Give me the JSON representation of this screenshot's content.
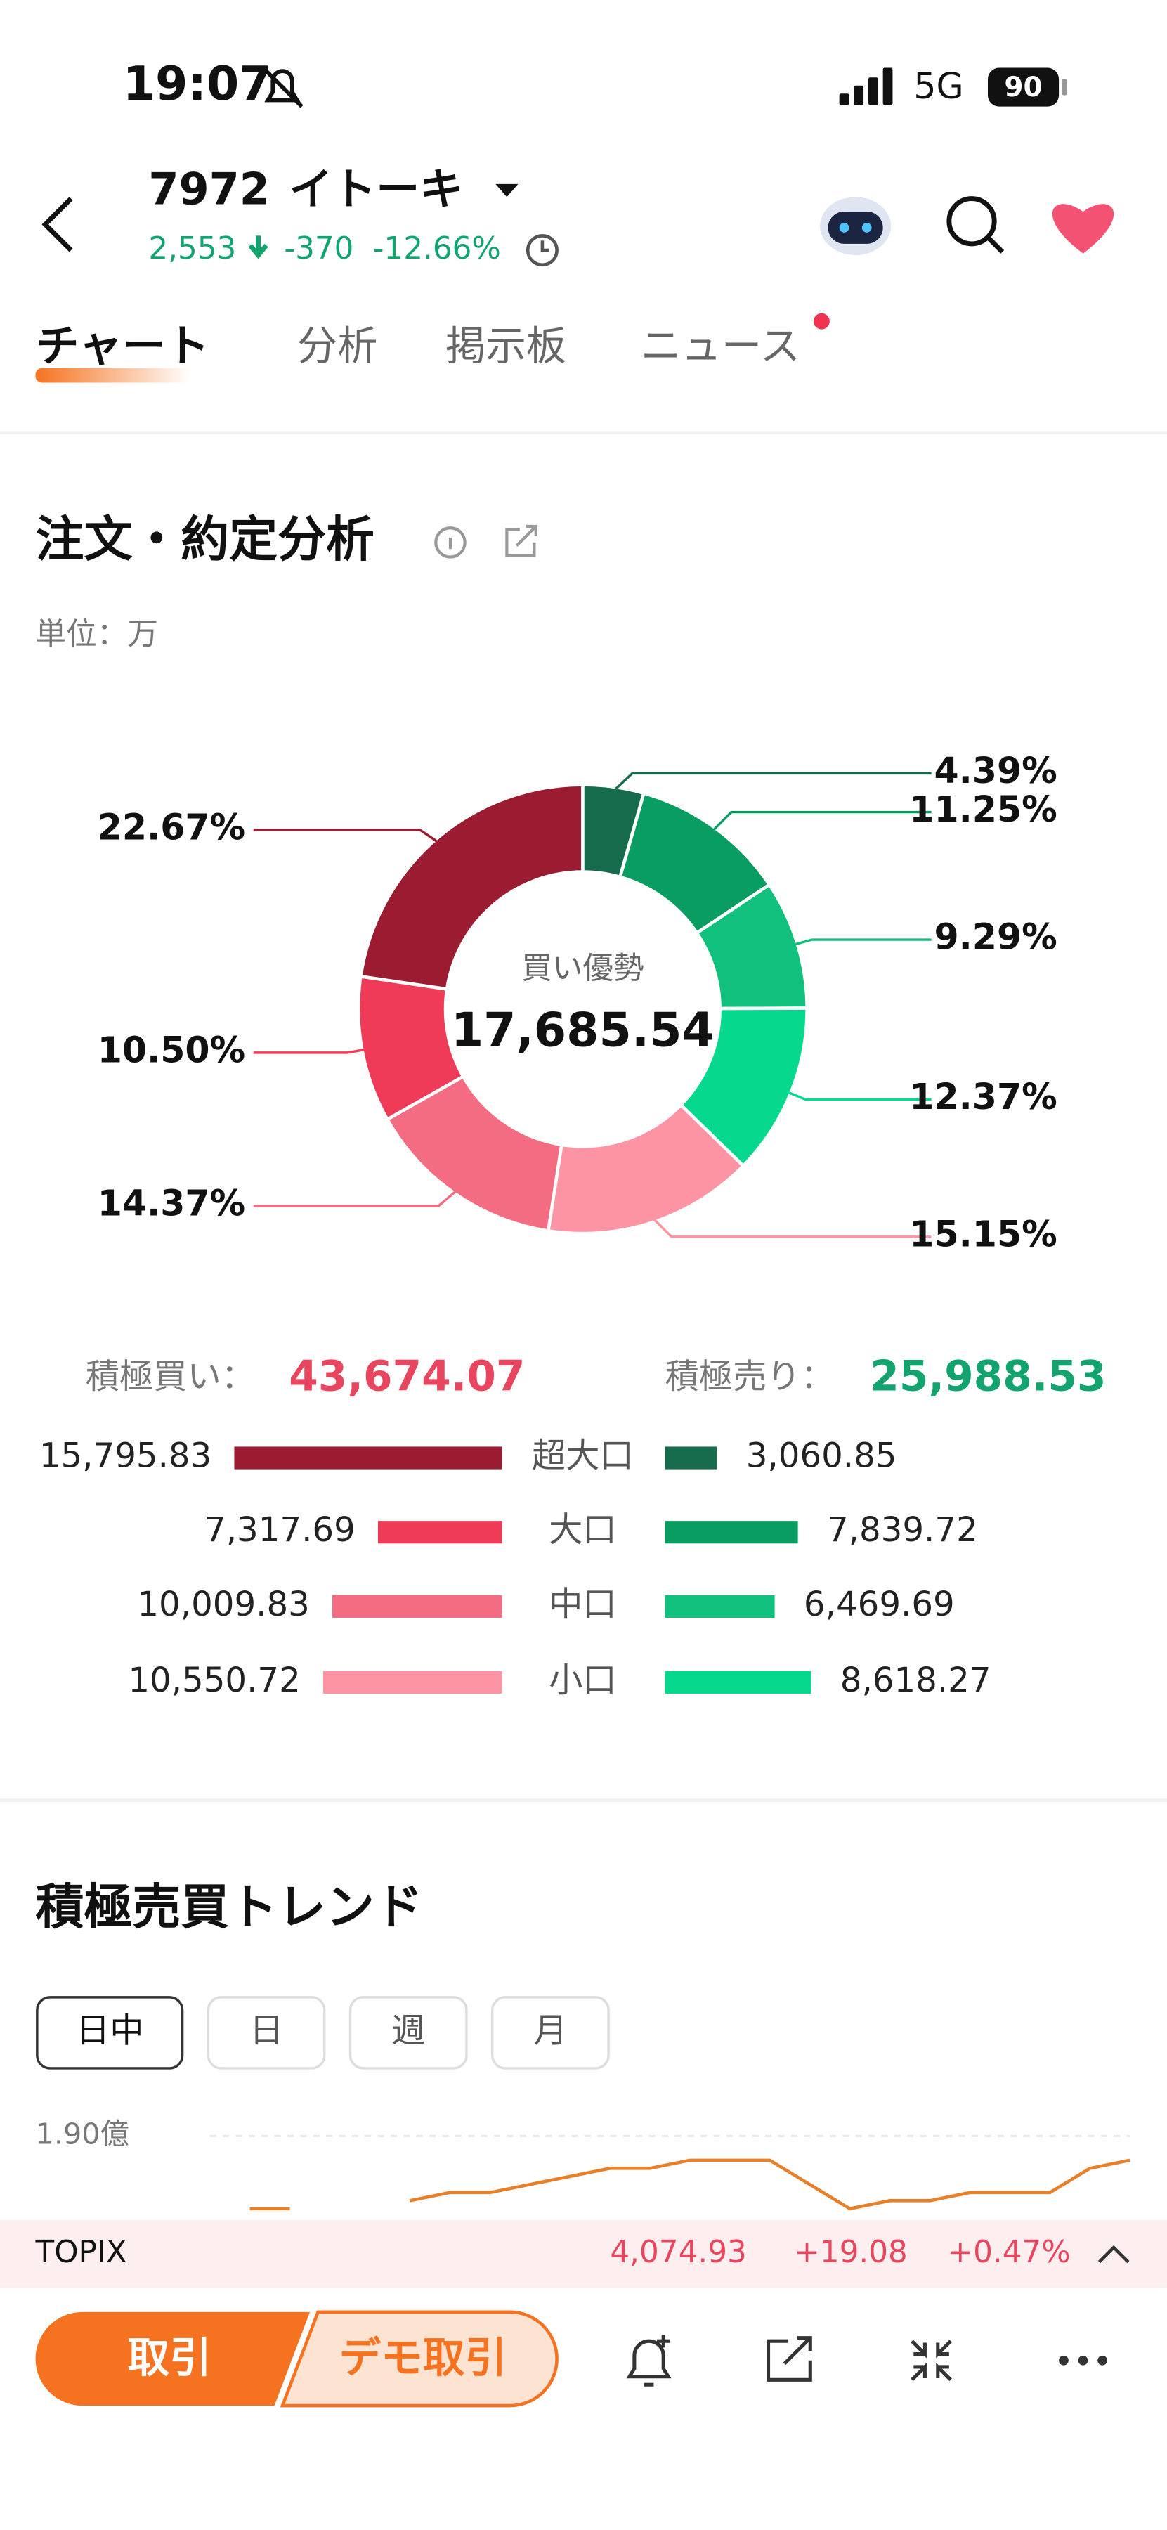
{
  "status_bar": {
    "time": "19:07",
    "network": "5G",
    "battery": "90"
  },
  "header": {
    "code": "7972",
    "name": "イトーキ",
    "price": "2,553",
    "change": "-370",
    "change_pct": "-12.66%"
  },
  "tabs": [
    "チャート",
    "分析",
    "掲示板",
    "ニュース"
  ],
  "order_section": {
    "title": "注文・約定分析",
    "unit": "単位：万"
  },
  "trend_section": {
    "title": "積極売買トレンド",
    "periods": [
      "日中",
      "日",
      "週",
      "月"
    ]
  },
  "ticker": {
    "name": "TOPIX",
    "price": "4,074.93",
    "change": "+19.08",
    "change_pct": "+0.47%"
  },
  "bottom_bar": {
    "trade": "取引",
    "demo_trade": "デモ取引"
  },
  "chart_data": [
    {
      "type": "pie",
      "center_label": "買い優勢",
      "center_value": 17685.54,
      "center_value_label": "17,685.54",
      "values": [
        4.39,
        11.25,
        9.29,
        12.37,
        15.15,
        14.37,
        10.5,
        22.67
      ],
      "value_labels": [
        "4.39%",
        "11.25%",
        "9.29%",
        "12.37%",
        "15.15%",
        "14.37%",
        "10.50%",
        "22.67%"
      ],
      "colors": [
        "#156b4b",
        "#0a9d61",
        "#12c07d",
        "#06d98d",
        "#fc94a4",
        "#f46c82",
        "#ef3b57",
        "#9b1b30"
      ]
    },
    {
      "type": "diverging_bar",
      "categories": [
        "超大口",
        "大口",
        "中口",
        "小口"
      ],
      "series": [
        {
          "name": "積極買い：",
          "total": 43674.07,
          "total_label": "43,674.07",
          "color": "#e8465e",
          "values": [
            15795.83,
            7317.69,
            10009.83,
            10550.72
          ],
          "value_labels": [
            "15,795.83",
            "7,317.69",
            "10,009.83",
            "10,550.72"
          ],
          "colors": [
            "#9b1b30",
            "#ef3b57",
            "#f46c82",
            "#fc94a4"
          ]
        },
        {
          "name": "積極売り：",
          "total": 25988.53,
          "total_label": "25,988.53",
          "color": "#13a36f",
          "values": [
            3060.85,
            7839.72,
            6469.69,
            8618.27
          ],
          "value_labels": [
            "3,060.85",
            "7,839.72",
            "6,469.69",
            "8,618.27"
          ],
          "colors": [
            "#156b4b",
            "#0a9d61",
            "#12c07d",
            "#06d98d"
          ]
        }
      ]
    },
    {
      "type": "line",
      "color": "#e8802a",
      "ylim": [
        1.5,
        1.9
      ],
      "yticks": [
        {
          "value": 1.9,
          "label": "1.90億"
        }
      ],
      "grid": true,
      "values": [
        null,
        1.81,
        1.81,
        null,
        null,
        1.82,
        1.83,
        1.83,
        1.84,
        1.85,
        1.86,
        1.86,
        1.87,
        1.87,
        1.87,
        1.84,
        1.81,
        1.82,
        1.82,
        1.83,
        1.83,
        1.83,
        1.86,
        1.87
      ]
    }
  ]
}
